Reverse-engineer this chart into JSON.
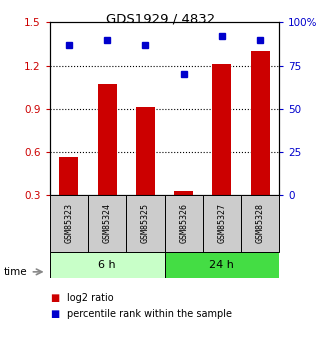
{
  "title": "GDS1929 / 4832",
  "samples": [
    "GSM85323",
    "GSM85324",
    "GSM85325",
    "GSM85326",
    "GSM85327",
    "GSM85328"
  ],
  "log2_ratio": [
    0.565,
    1.07,
    0.91,
    0.33,
    1.21,
    1.3
  ],
  "log2_ratio_base": 0.3,
  "percentile_rank": [
    87,
    90,
    87,
    70,
    92,
    90
  ],
  "ylim_left": [
    0.3,
    1.5
  ],
  "ylim_right": [
    0,
    100
  ],
  "yticks_left": [
    0.3,
    0.6,
    0.9,
    1.2,
    1.5
  ],
  "yticks_right": [
    0,
    25,
    50,
    75,
    100
  ],
  "ytick_labels_left": [
    "0.3",
    "0.6",
    "0.9",
    "1.2",
    "1.5"
  ],
  "ytick_labels_right": [
    "0",
    "25",
    "50",
    "75",
    "100%"
  ],
  "hlines": [
    0.6,
    0.9,
    1.2
  ],
  "bar_color": "#cc0000",
  "dot_color": "#0000cc",
  "group_6h_label": "6 h",
  "group_24h_label": "24 h",
  "group_6h_color": "#c8ffc8",
  "group_24h_color": "#44dd44",
  "time_label": "time",
  "legend_bar_label": "log2 ratio",
  "legend_dot_label": "percentile rank within the sample",
  "bar_width": 0.5,
  "left_axis_color": "#cc0000",
  "right_axis_color": "#0000cc",
  "sample_box_color": "#cccccc"
}
